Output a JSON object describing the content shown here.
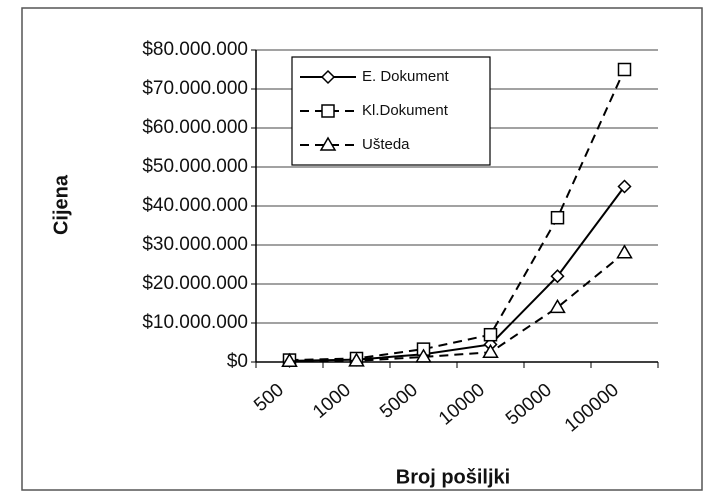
{
  "chart_data": {
    "type": "line",
    "x_label": "Broj pošiljki",
    "y_label": "Cijena",
    "categories": [
      "500",
      "1000",
      "5000",
      "10000",
      "50000",
      "100000"
    ],
    "series": [
      {
        "name": "E. Dokument",
        "color": "#000000",
        "marker": "diamond",
        "dash": false,
        "values": [
          300000,
          600000,
          2000000,
          4500000,
          22000000,
          45000000
        ]
      },
      {
        "name": "Kl.Dokument",
        "color": "#000000",
        "marker": "square",
        "dash": true,
        "values": [
          500000,
          900000,
          3300000,
          7000000,
          37000000,
          75000000
        ]
      },
      {
        "name": "Ušteda",
        "color": "#000000",
        "marker": "triangle",
        "dash": true,
        "values": [
          200000,
          300000,
          1300000,
          2500000,
          14000000,
          28000000
        ]
      }
    ],
    "ylim": [
      0,
      80000000
    ],
    "yticks": [
      {
        "value": 0,
        "label": "$0"
      },
      {
        "value": 10000000,
        "label": "$10.000.000"
      },
      {
        "value": 20000000,
        "label": "$20.000.000"
      },
      {
        "value": 30000000,
        "label": "$30.000.000"
      },
      {
        "value": 40000000,
        "label": "$40.000.000"
      },
      {
        "value": 50000000,
        "label": "$50.000.000"
      },
      {
        "value": 60000000,
        "label": "$60.000.000"
      },
      {
        "value": 70000000,
        "label": "$70.000.000"
      },
      {
        "value": 80000000,
        "label": "$80.000.000"
      }
    ],
    "grid": true,
    "legend": "top-left"
  }
}
